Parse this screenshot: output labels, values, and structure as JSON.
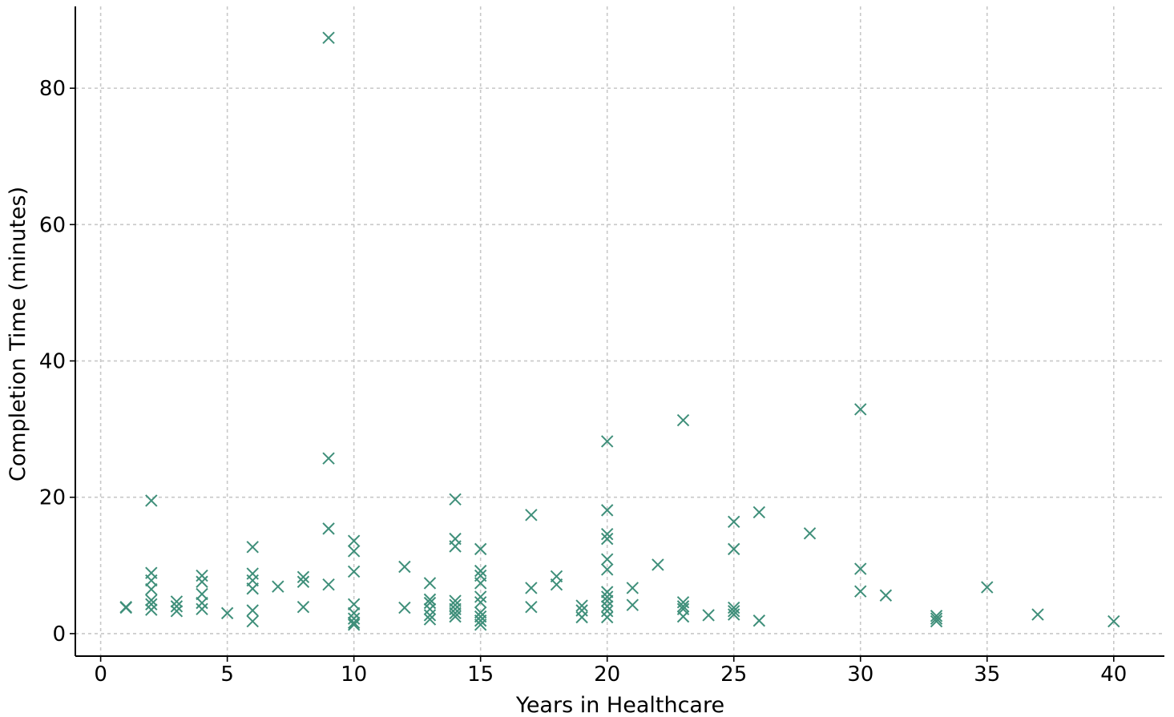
{
  "chart_data": {
    "type": "scatter",
    "marker": "x",
    "color": "#3f8f7a",
    "xlabel": "Years in Healthcare",
    "ylabel": "Completion Time (minutes)",
    "xlim": [
      -1,
      42
    ],
    "ylim": [
      -3.3,
      92
    ],
    "xticks": [
      0,
      5,
      10,
      15,
      20,
      25,
      30,
      35,
      40
    ],
    "yticks": [
      0,
      20,
      40,
      60,
      80
    ],
    "grid": true,
    "legend": "none",
    "points": [
      [
        1,
        3.8
      ],
      [
        1,
        3.9
      ],
      [
        2,
        19.5
      ],
      [
        2,
        8.9
      ],
      [
        2,
        7.8
      ],
      [
        2,
        6.5
      ],
      [
        2,
        4.9
      ],
      [
        2,
        4.3
      ],
      [
        2,
        3.5
      ],
      [
        3,
        4.7
      ],
      [
        3,
        4.0
      ],
      [
        3,
        3.3
      ],
      [
        4,
        8.5
      ],
      [
        4,
        7.6
      ],
      [
        4,
        5.8
      ],
      [
        4,
        4.5
      ],
      [
        4,
        3.6
      ],
      [
        5,
        3.0
      ],
      [
        6,
        12.7
      ],
      [
        6,
        8.8
      ],
      [
        6,
        7.8
      ],
      [
        6,
        6.6
      ],
      [
        6,
        3.4
      ],
      [
        6,
        1.8
      ],
      [
        7,
        6.9
      ],
      [
        8,
        8.3
      ],
      [
        8,
        7.6
      ],
      [
        8,
        3.9
      ],
      [
        9,
        87.4
      ],
      [
        9,
        25.7
      ],
      [
        9,
        15.4
      ],
      [
        9,
        7.2
      ],
      [
        10,
        13.6
      ],
      [
        10,
        12.1
      ],
      [
        10,
        9.1
      ],
      [
        10,
        4.3
      ],
      [
        10,
        3.0
      ],
      [
        10,
        2.2
      ],
      [
        10,
        1.6
      ],
      [
        10,
        1.3
      ],
      [
        12,
        9.8
      ],
      [
        12,
        3.8
      ],
      [
        13,
        7.4
      ],
      [
        13,
        5.0
      ],
      [
        13,
        4.5
      ],
      [
        13,
        3.6
      ],
      [
        13,
        2.7
      ],
      [
        13,
        2.1
      ],
      [
        14,
        19.7
      ],
      [
        14,
        13.9
      ],
      [
        14,
        12.8
      ],
      [
        14,
        4.8
      ],
      [
        14,
        4.2
      ],
      [
        14,
        3.6
      ],
      [
        14,
        3.0
      ],
      [
        14,
        2.5
      ],
      [
        15,
        12.4
      ],
      [
        15,
        9.2
      ],
      [
        15,
        8.5
      ],
      [
        15,
        7.4
      ],
      [
        15,
        5.4
      ],
      [
        15,
        4.6
      ],
      [
        15,
        3.1
      ],
      [
        15,
        2.5
      ],
      [
        15,
        1.9
      ],
      [
        15,
        1.3
      ],
      [
        17,
        17.4
      ],
      [
        17,
        6.7
      ],
      [
        17,
        3.9
      ],
      [
        18,
        8.4
      ],
      [
        18,
        7.2
      ],
      [
        19,
        4.1
      ],
      [
        19,
        3.4
      ],
      [
        19,
        2.4
      ],
      [
        20,
        28.2
      ],
      [
        20,
        18.1
      ],
      [
        20,
        14.6
      ],
      [
        20,
        13.9
      ],
      [
        20,
        10.9
      ],
      [
        20,
        9.4
      ],
      [
        20,
        6.1
      ],
      [
        20,
        5.4
      ],
      [
        20,
        4.8
      ],
      [
        20,
        4.0
      ],
      [
        20,
        3.3
      ],
      [
        20,
        2.4
      ],
      [
        21,
        6.7
      ],
      [
        21,
        4.2
      ],
      [
        22,
        10.1
      ],
      [
        23,
        31.3
      ],
      [
        23,
        4.6
      ],
      [
        23,
        4.0
      ],
      [
        23,
        3.6
      ],
      [
        23,
        2.5
      ],
      [
        24,
        2.7
      ],
      [
        25,
        16.4
      ],
      [
        25,
        12.4
      ],
      [
        25,
        3.8
      ],
      [
        25,
        3.3
      ],
      [
        25,
        2.8
      ],
      [
        26,
        17.8
      ],
      [
        26,
        1.9
      ],
      [
        28,
        14.7
      ],
      [
        30,
        32.9
      ],
      [
        30,
        9.5
      ],
      [
        30,
        6.2
      ],
      [
        31,
        5.6
      ],
      [
        33,
        2.6
      ],
      [
        33,
        2.2
      ],
      [
        33,
        1.8
      ],
      [
        35,
        6.8
      ],
      [
        37,
        2.8
      ],
      [
        40,
        1.8
      ]
    ]
  }
}
